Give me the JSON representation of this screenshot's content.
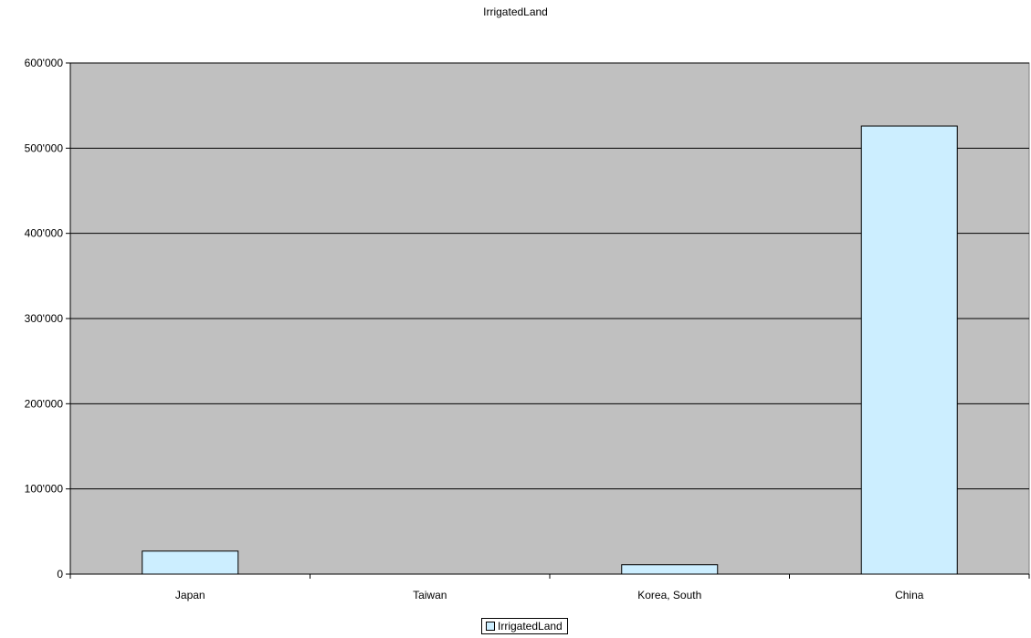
{
  "chart_data": {
    "type": "bar",
    "title": "IrrigatedLand",
    "xlabel": "",
    "ylabel": "",
    "categories": [
      "Japan",
      "Taiwan",
      "Korea, South",
      "China"
    ],
    "series": [
      {
        "name": "IrrigatedLand",
        "values": [
          27000,
          0,
          11000,
          526000
        ]
      }
    ],
    "ylim": [
      0,
      600000
    ],
    "yticks": [
      0,
      100000,
      200000,
      300000,
      400000,
      500000,
      600000
    ],
    "ytick_labels": [
      "0",
      "100'000",
      "200'000",
      "300'000",
      "400'000",
      "500'000",
      "600'000"
    ],
    "grid": true,
    "legend_position": "bottom-center",
    "colors": {
      "plot_background": "#c0c0c0",
      "bar_fill": "#cceeff",
      "bar_stroke": "#000000"
    }
  }
}
